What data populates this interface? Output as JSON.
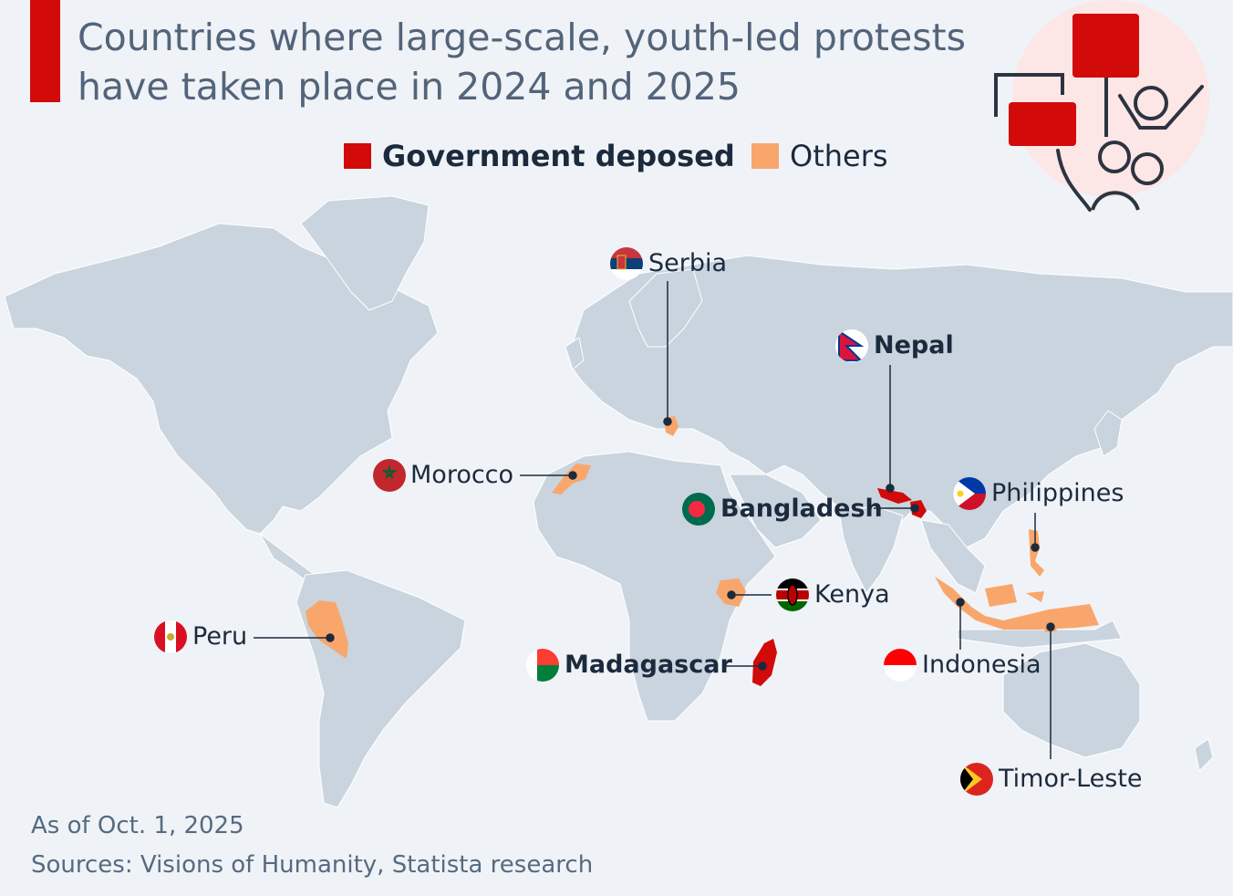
{
  "header": {
    "title_line1": "Countries where large-scale, youth-led protests",
    "title_line2": "have taken place in 2024 and 2025"
  },
  "legend": {
    "deposed_label": "Government deposed",
    "others_label": "Others"
  },
  "colors": {
    "deposed": "#d20a0a",
    "others": "#f9a66c",
    "land": "#c9d4de",
    "background": "#eff3f7",
    "title_text": "#53647a",
    "label_text": "#1c2a3d",
    "leader_line": "#1c2a3d"
  },
  "countries": [
    {
      "id": "serbia",
      "name": "Serbia",
      "category": "others"
    },
    {
      "id": "nepal",
      "name": "Nepal",
      "category": "deposed"
    },
    {
      "id": "morocco",
      "name": "Morocco",
      "category": "others"
    },
    {
      "id": "bangladesh",
      "name": "Bangladesh",
      "category": "deposed"
    },
    {
      "id": "philippines",
      "name": "Philippines",
      "category": "others"
    },
    {
      "id": "kenya",
      "name": "Kenya",
      "category": "others"
    },
    {
      "id": "peru",
      "name": "Peru",
      "category": "others"
    },
    {
      "id": "madagascar",
      "name": "Madagascar",
      "category": "deposed"
    },
    {
      "id": "indonesia",
      "name": "Indonesia",
      "category": "others"
    },
    {
      "id": "timor_leste",
      "name": "Timor-Leste",
      "category": "others"
    }
  ],
  "footer": {
    "as_of": "As of Oct. 1, 2025",
    "sources": "Sources: Visions of Humanity, Statista research"
  }
}
